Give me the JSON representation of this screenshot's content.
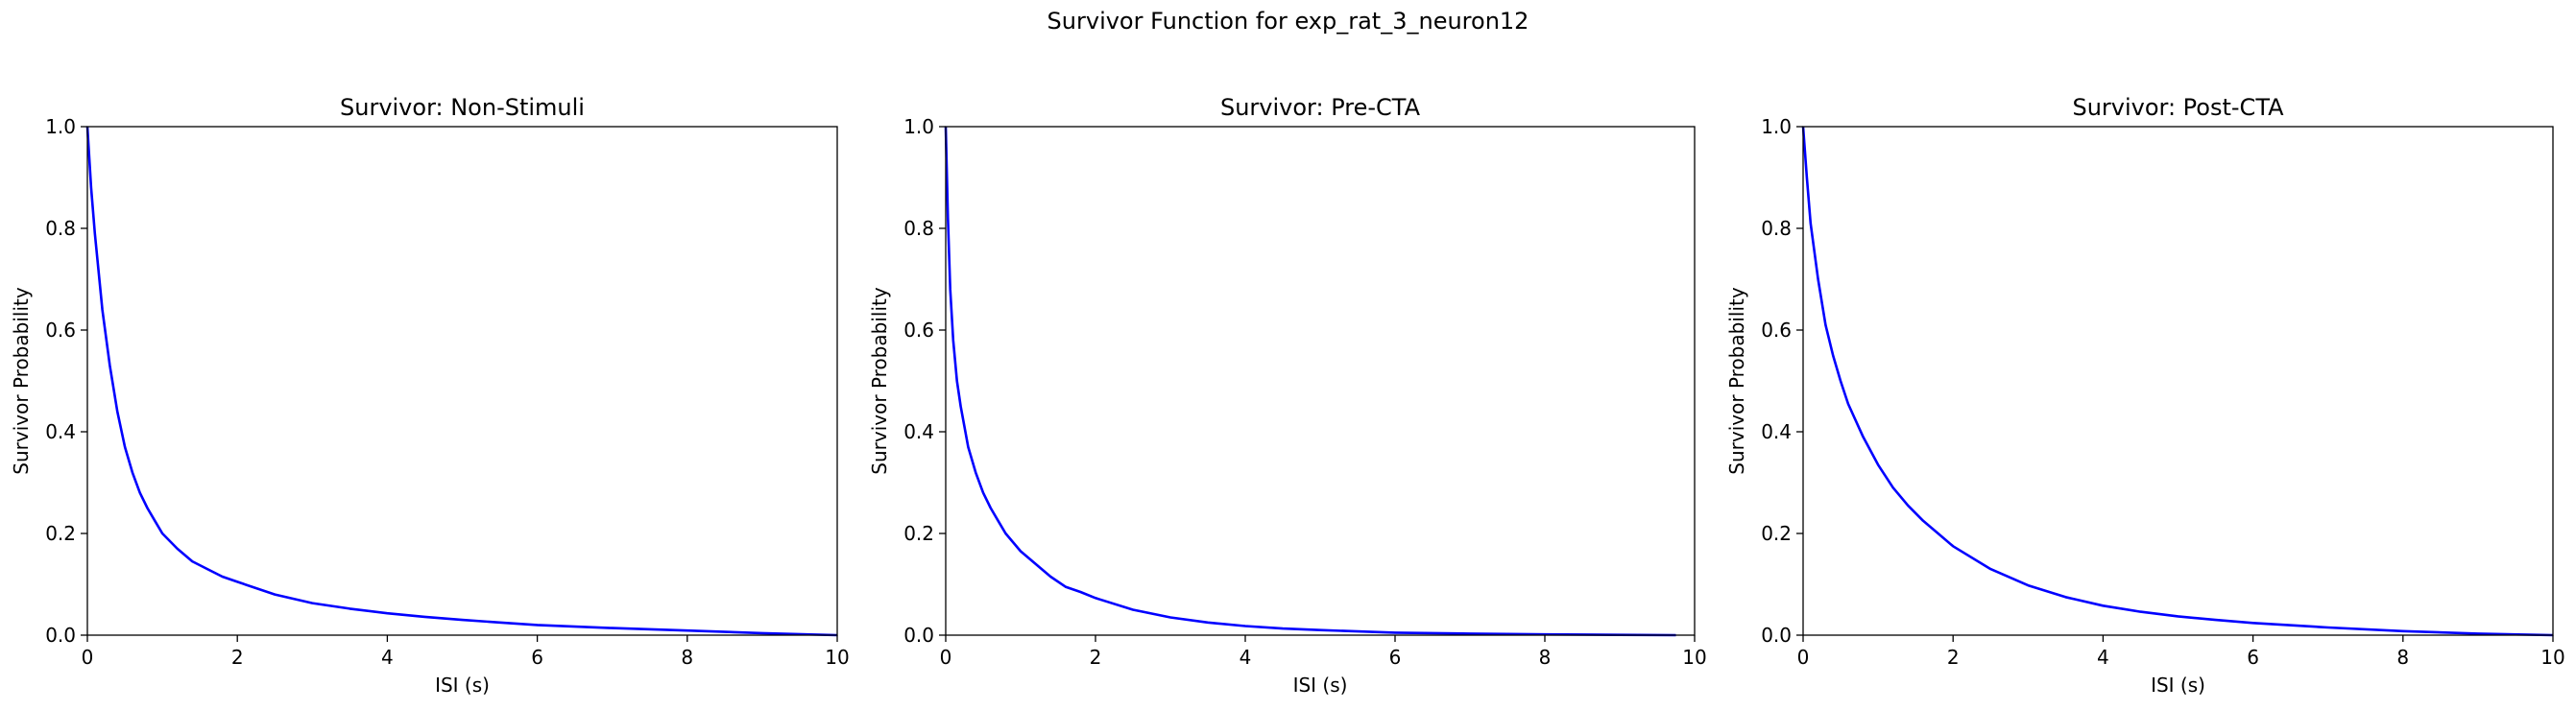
{
  "suptitle": "Survivor Function for exp_rat_3_neuron12",
  "line_color": "#0000ff",
  "chart_data": [
    {
      "type": "line",
      "title": "Survivor: Non-Stimuli",
      "xlabel": "ISI (s)",
      "ylabel": "Survivor Probability",
      "xlim": [
        0,
        10
      ],
      "ylim": [
        0,
        1
      ],
      "xticks": [
        "0",
        "2",
        "4",
        "6",
        "8",
        "10"
      ],
      "yticks": [
        "0.0",
        "0.2",
        "0.4",
        "0.6",
        "0.8",
        "1.0"
      ],
      "grid": false,
      "series": [
        {
          "x": [
            0,
            0.05,
            0.1,
            0.2,
            0.3,
            0.4,
            0.5,
            0.6,
            0.7,
            0.8,
            0.9,
            1.0,
            1.2,
            1.4,
            1.6,
            1.8,
            2.0,
            2.5,
            3.0,
            3.5,
            4.0,
            4.5,
            5.0,
            5.5,
            6.0,
            7.0,
            8.0,
            9.0,
            10.0
          ],
          "y": [
            1.0,
            0.88,
            0.79,
            0.64,
            0.53,
            0.44,
            0.37,
            0.32,
            0.28,
            0.25,
            0.225,
            0.2,
            0.17,
            0.145,
            0.13,
            0.115,
            0.105,
            0.08,
            0.063,
            0.052,
            0.043,
            0.036,
            0.03,
            0.025,
            0.02,
            0.014,
            0.009,
            0.004,
            0.0
          ]
        }
      ]
    },
    {
      "type": "line",
      "title": "Survivor: Pre-CTA",
      "xlabel": "ISI (s)",
      "ylabel": "Survivor Probability",
      "xlim": [
        0,
        10
      ],
      "ylim": [
        0,
        1
      ],
      "xticks": [
        "0",
        "2",
        "4",
        "6",
        "8",
        "10"
      ],
      "yticks": [
        "0.0",
        "0.2",
        "0.4",
        "0.6",
        "0.8",
        "1.0"
      ],
      "grid": false,
      "series": [
        {
          "x": [
            0,
            0.03,
            0.06,
            0.1,
            0.15,
            0.2,
            0.3,
            0.4,
            0.5,
            0.6,
            0.7,
            0.8,
            1.0,
            1.2,
            1.4,
            1.6,
            1.8,
            2.0,
            2.5,
            3.0,
            3.5,
            4.0,
            4.5,
            5.0,
            6.0,
            7.0,
            8.0,
            9.0,
            9.75
          ],
          "y": [
            1.0,
            0.82,
            0.68,
            0.58,
            0.5,
            0.45,
            0.37,
            0.32,
            0.28,
            0.25,
            0.225,
            0.2,
            0.165,
            0.14,
            0.115,
            0.095,
            0.085,
            0.073,
            0.05,
            0.035,
            0.025,
            0.018,
            0.013,
            0.01,
            0.005,
            0.003,
            0.0015,
            0.0005,
            0.0
          ]
        }
      ]
    },
    {
      "type": "line",
      "title": "Survivor: Post-CTA",
      "xlabel": "ISI (s)",
      "ylabel": "Survivor Probability",
      "xlim": [
        0,
        10
      ],
      "ylim": [
        0,
        1
      ],
      "xticks": [
        "0",
        "2",
        "4",
        "6",
        "8",
        "10"
      ],
      "yticks": [
        "0.0",
        "0.2",
        "0.4",
        "0.6",
        "0.8",
        "1.0"
      ],
      "grid": false,
      "series": [
        {
          "x": [
            0,
            0.05,
            0.1,
            0.2,
            0.3,
            0.4,
            0.5,
            0.6,
            0.8,
            1.0,
            1.2,
            1.4,
            1.6,
            1.8,
            2.0,
            2.5,
            3.0,
            3.5,
            4.0,
            4.5,
            5.0,
            5.5,
            6.0,
            7.0,
            8.0,
            9.0,
            10.0
          ],
          "y": [
            1.0,
            0.9,
            0.81,
            0.7,
            0.61,
            0.55,
            0.5,
            0.455,
            0.39,
            0.335,
            0.29,
            0.255,
            0.225,
            0.2,
            0.175,
            0.13,
            0.098,
            0.075,
            0.058,
            0.046,
            0.037,
            0.03,
            0.024,
            0.015,
            0.008,
            0.003,
            0.0
          ]
        }
      ]
    }
  ]
}
